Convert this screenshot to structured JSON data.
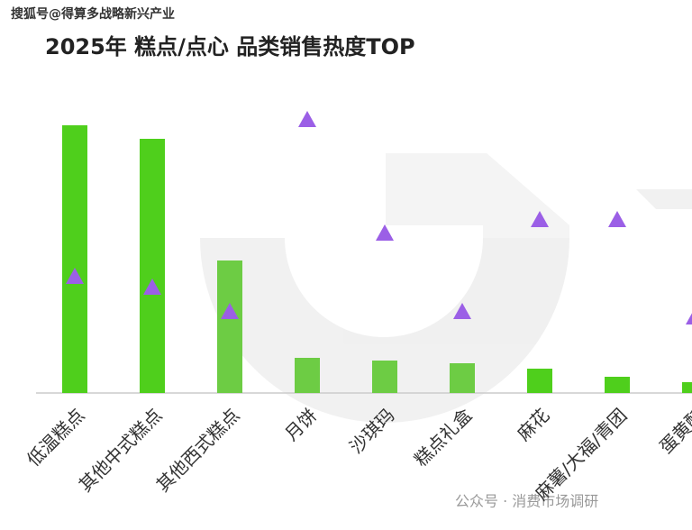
{
  "watermark_top": "搜狐号@得算多战略新兴产业",
  "watermark_bottom": "公众号 · 消费市场调研",
  "chart_data": {
    "type": "bar_triangle",
    "title": "2025年 糕点/点心 品类销售热度TOP",
    "categories": [
      "低温糕点",
      "其他中式糕点",
      "其他西式糕点",
      "月饼",
      "沙琪玛",
      "糕点礼盒",
      "麻花",
      "麻薯/大福/青团",
      "蛋黄酥"
    ],
    "series": [
      {
        "color": "#4fcf1c",
        "values": [
          99,
          94,
          49,
          13,
          12,
          11,
          9,
          6,
          4
        ]
      },
      {
        "color": "#9b5fe6",
        "values": [
          43,
          39,
          30,
          101,
          59,
          30,
          64,
          64,
          28
        ]
      }
    ],
    "ylim": [
      0,
      105
    ]
  }
}
